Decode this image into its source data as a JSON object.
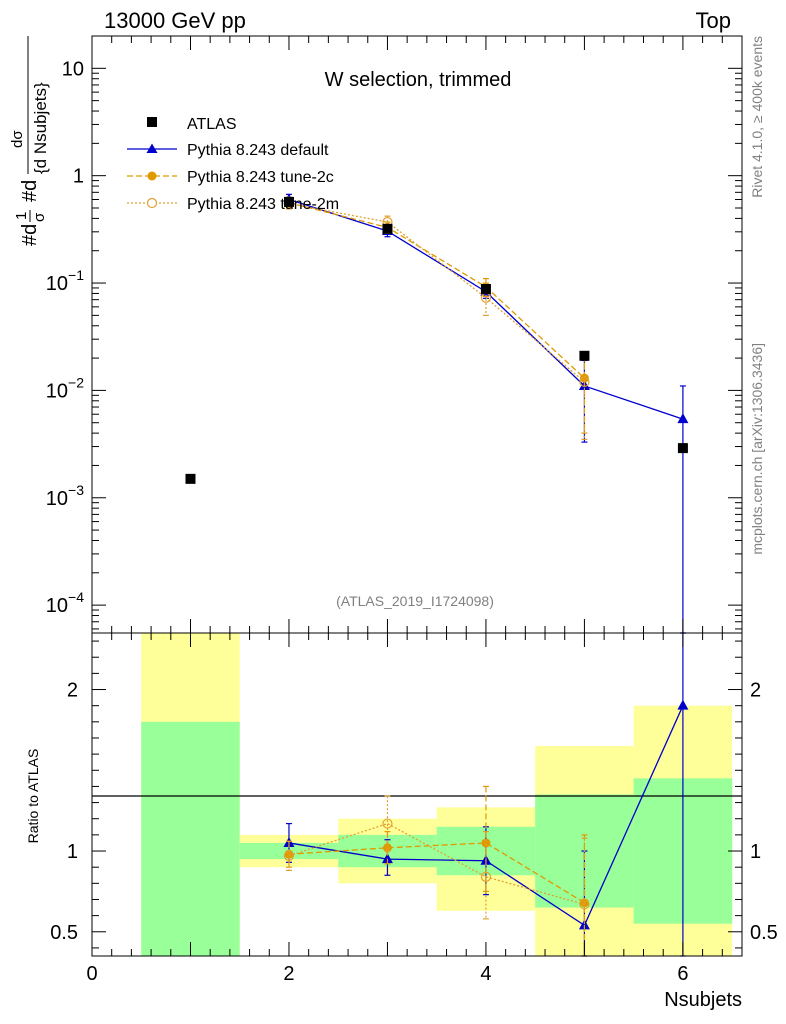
{
  "header": {
    "left": "13000 GeV pp",
    "right": "Top"
  },
  "side_labels": {
    "rivet": "Rivet 4.1.0, ≥ 400k events",
    "mcplots": "mcplots.cern.ch [arXiv:1306.3436]"
  },
  "colors": {
    "atlas": "#000000",
    "default": "#0000cc",
    "tune2c": "#e09a00",
    "tune2m": "#e0a030",
    "band_green": "#99ff99",
    "band_yellow": "#ffff99"
  },
  "chart_data": [
    {
      "type": "scatter",
      "panel": "main",
      "title": "W selection, trimmed",
      "analysis": "(ATLAS_2019_I1724098)",
      "ylabel_parts": [
        "#d",
        "1",
        "σ",
        "#d",
        "dσ",
        "{d Nsubjets}"
      ],
      "yscale": "log",
      "ylim": [
        5.5e-05,
        20
      ],
      "xlim": [
        0,
        6.6
      ],
      "ytick_labels": [
        {
          "value": 10,
          "mant": "10",
          "exp": ""
        },
        {
          "value": 1,
          "mant": "1",
          "exp": ""
        },
        {
          "value": 0.1,
          "mant": "10",
          "exp": "−1"
        },
        {
          "value": 0.01,
          "mant": "10",
          "exp": "−2"
        },
        {
          "value": 0.001,
          "mant": "10",
          "exp": "−3"
        },
        {
          "value": 0.0001,
          "mant": "10",
          "exp": "−4"
        }
      ],
      "legend": {
        "position": "top-left",
        "entries": [
          "ATLAS",
          "Pythia 8.243 default",
          "Pythia 8.243 tune-2c",
          "Pythia 8.243 tune-2m"
        ]
      },
      "series": [
        {
          "name": "ATLAS",
          "style": "square",
          "x": [
            1,
            2,
            3,
            4,
            5,
            6
          ],
          "y": [
            0.0015,
            0.57,
            0.32,
            0.088,
            0.021,
            0.0029
          ]
        },
        {
          "name": "Pythia 8.243 default",
          "style": "triangle-line",
          "x": [
            2,
            3,
            4,
            5,
            6
          ],
          "y": [
            0.6,
            0.305,
            0.083,
            0.011,
            0.0054
          ],
          "err_lo": [
            0.53,
            0.27,
            0.072,
            0.0033,
            5e-05
          ],
          "err_hi": [
            0.67,
            0.34,
            0.095,
            0.019,
            0.011
          ]
        },
        {
          "name": "Pythia 8.243 tune-2c",
          "style": "dot-dash",
          "x": [
            2,
            3,
            4,
            5
          ],
          "y": [
            0.56,
            0.33,
            0.092,
            0.013
          ],
          "err_lo": [
            0.5,
            0.29,
            0.075,
            0.004
          ],
          "err_hi": [
            0.63,
            0.37,
            0.11,
            0.022
          ]
        },
        {
          "name": "Pythia 8.243 tune-2m",
          "style": "circle-dot",
          "x": [
            2,
            3,
            4,
            5
          ],
          "y": [
            0.55,
            0.37,
            0.073,
            0.012
          ],
          "err_lo": [
            0.49,
            0.32,
            0.05,
            0.0035
          ],
          "err_hi": [
            0.62,
            0.42,
            0.1,
            0.021
          ]
        }
      ]
    },
    {
      "type": "scatter",
      "panel": "ratio",
      "ylabel": "Ratio to ATLAS",
      "xlabel": "Nsubjets",
      "ylim": [
        0.35,
        2.35
      ],
      "xlim": [
        0,
        6.6
      ],
      "xtick_labels": [
        "0",
        "2",
        "4",
        "6"
      ],
      "ytick_labels": [
        "0.5",
        "1",
        "2"
      ],
      "bands": [
        {
          "x0": 0.5,
          "x1": 1.5,
          "green": [
            0.35,
            1.8
          ],
          "yellow": [
            0.35,
            2.35
          ]
        },
        {
          "x0": 1.5,
          "x1": 2.5,
          "green": [
            0.95,
            1.05
          ],
          "yellow": [
            0.9,
            1.1
          ]
        },
        {
          "x0": 2.5,
          "x1": 3.5,
          "green": [
            0.9,
            1.1
          ],
          "yellow": [
            0.8,
            1.2
          ]
        },
        {
          "x0": 3.5,
          "x1": 4.5,
          "green": [
            0.85,
            1.15
          ],
          "yellow": [
            0.63,
            1.27
          ]
        },
        {
          "x0": 4.5,
          "x1": 5.5,
          "green": [
            0.65,
            1.35
          ],
          "yellow": [
            0.35,
            1.65
          ]
        },
        {
          "x0": 5.5,
          "x1": 6.5,
          "green": [
            0.55,
            1.45
          ],
          "yellow": [
            0.35,
            1.9
          ]
        }
      ],
      "series": [
        {
          "name": "Pythia 8.243 default",
          "style": "triangle-line",
          "x": [
            2,
            3,
            4,
            5,
            6
          ],
          "y": [
            1.05,
            0.95,
            0.94,
            0.54,
            1.9
          ],
          "err_lo": [
            0.93,
            0.85,
            0.73,
            0.35,
            0.35
          ],
          "err_hi": [
            1.17,
            1.07,
            1.15,
            1.0,
            2.35
          ]
        },
        {
          "name": "Pythia 8.243 tune-2c",
          "style": "dot-dash",
          "x": [
            2,
            3,
            4,
            5
          ],
          "y": [
            0.98,
            1.02,
            1.05,
            0.68
          ],
          "err_lo": [
            0.9,
            0.92,
            0.75,
            0.35
          ],
          "err_hi": [
            1.06,
            1.12,
            1.4,
            1.1
          ]
        },
        {
          "name": "Pythia 8.243 tune-2m",
          "style": "circle-dot",
          "x": [
            2,
            3,
            4,
            5
          ],
          "y": [
            0.97,
            1.17,
            0.84,
            0.67
          ],
          "err_lo": [
            0.88,
            1.0,
            0.58,
            0.35
          ],
          "err_hi": [
            1.06,
            1.34,
            1.12,
            1.08
          ]
        }
      ]
    }
  ]
}
